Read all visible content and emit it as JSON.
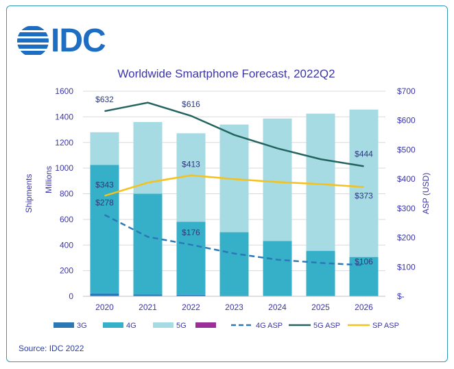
{
  "logo_text": "IDC",
  "source": "Source: IDC 2022",
  "colors": {
    "g3": "#2b78b6",
    "g4": "#35b0c8",
    "g5": "#a6dbe4",
    "other": "#9a2f97",
    "asp4g": "#2b78b6",
    "asp5g": "#23645f",
    "aspsp": "#f6c11a",
    "text": "#3b35a8",
    "grid": "#d9d9d9",
    "frame": "#2e9ab8",
    "logo": "#1d6ec2"
  },
  "chart_data": {
    "type": "bar",
    "title": "Worldwide Smartphone Forecast, 2022Q2",
    "categories": [
      "2020",
      "2021",
      "2022",
      "2023",
      "2024",
      "2025",
      "2026"
    ],
    "ylabel_left_1": "Shipments",
    "ylabel_left_2": "Millions",
    "ylabel_right": "ASP (USD)",
    "ylim_left": [
      0,
      1600
    ],
    "yticks_left": [
      "0",
      "200",
      "400",
      "600",
      "800",
      "1000",
      "1200",
      "1400",
      "1600"
    ],
    "ylim_right": [
      0,
      700
    ],
    "yticks_right": [
      "$-",
      "$100",
      "$200",
      "$300",
      "$400",
      "$500",
      "$600",
      "$700"
    ],
    "grid": true,
    "legend_position": "bottom",
    "stacked_series": [
      {
        "name": "3G",
        "values": [
          22,
          15,
          12,
          6,
          4,
          3,
          2
        ]
      },
      {
        "name": "4G",
        "values": [
          1003,
          785,
          570,
          494,
          428,
          352,
          305
        ]
      },
      {
        "name": "5G",
        "values": [
          255,
          560,
          690,
          840,
          955,
          1070,
          1150
        ]
      },
      {
        "name": "",
        "values": [
          0,
          0,
          0,
          0,
          0,
          0,
          0
        ]
      }
    ],
    "line_series": [
      {
        "name": "4G ASP",
        "values": [
          278,
          203,
          176,
          146,
          125,
          114,
          106
        ],
        "dashed": true
      },
      {
        "name": "5G ASP",
        "values": [
          632,
          661,
          616,
          551,
          505,
          468,
          444
        ],
        "dashed": false
      },
      {
        "name": "SP ASP",
        "values": [
          343,
          388,
          413,
          400,
          390,
          383,
          373
        ],
        "dashed": false
      }
    ],
    "annotations": [
      {
        "series": "5G ASP",
        "index": 0,
        "text": "$632"
      },
      {
        "series": "5G ASP",
        "index": 2,
        "text": "$616"
      },
      {
        "series": "5G ASP",
        "index": 6,
        "text": "$444"
      },
      {
        "series": "SP ASP",
        "index": 0,
        "text": "$343"
      },
      {
        "series": "SP ASP",
        "index": 2,
        "text": "$413"
      },
      {
        "series": "SP ASP",
        "index": 6,
        "text": "$373"
      },
      {
        "series": "4G ASP",
        "index": 0,
        "text": "$278"
      },
      {
        "series": "4G ASP",
        "index": 2,
        "text": "$176"
      },
      {
        "series": "4G ASP",
        "index": 6,
        "text": "$106"
      }
    ],
    "legend": [
      "3G",
      "4G",
      "5G",
      "",
      "4G ASP",
      "5G ASP",
      "SP ASP"
    ]
  }
}
